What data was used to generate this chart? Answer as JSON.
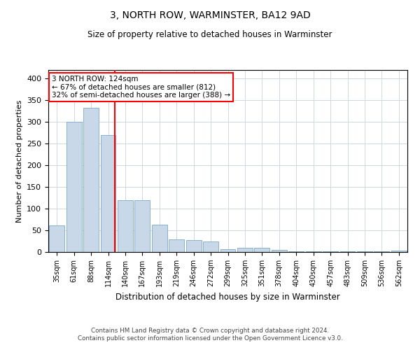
{
  "title": "3, NORTH ROW, WARMINSTER, BA12 9AD",
  "subtitle": "Size of property relative to detached houses in Warminster",
  "xlabel": "Distribution of detached houses by size in Warminster",
  "ylabel": "Number of detached properties",
  "bar_color": "#c8d8e8",
  "bar_edge_color": "#7aaac8",
  "categories": [
    "35sqm",
    "61sqm",
    "88sqm",
    "114sqm",
    "140sqm",
    "167sqm",
    "193sqm",
    "219sqm",
    "246sqm",
    "272sqm",
    "299sqm",
    "325sqm",
    "351sqm",
    "378sqm",
    "404sqm",
    "430sqm",
    "457sqm",
    "483sqm",
    "509sqm",
    "536sqm",
    "562sqm"
  ],
  "values": [
    61,
    300,
    333,
    270,
    120,
    120,
    63,
    29,
    28,
    24,
    7,
    10,
    10,
    5,
    2,
    2,
    2,
    2,
    2,
    2,
    3
  ],
  "red_line_x": 3.37,
  "annotation_line1": "3 NORTH ROW: 124sqm",
  "annotation_line2": "← 67% of detached houses are smaller (812)",
  "annotation_line3": "32% of semi-detached houses are larger (388) →",
  "annotation_box_color": "white",
  "annotation_box_edge_color": "red",
  "ylim": [
    0,
    420
  ],
  "yticks": [
    0,
    50,
    100,
    150,
    200,
    250,
    300,
    350,
    400
  ],
  "grid_color": "#d0d8e0",
  "background_color": "white",
  "footer_line1": "Contains HM Land Registry data © Crown copyright and database right 2024.",
  "footer_line2": "Contains public sector information licensed under the Open Government Licence v3.0."
}
